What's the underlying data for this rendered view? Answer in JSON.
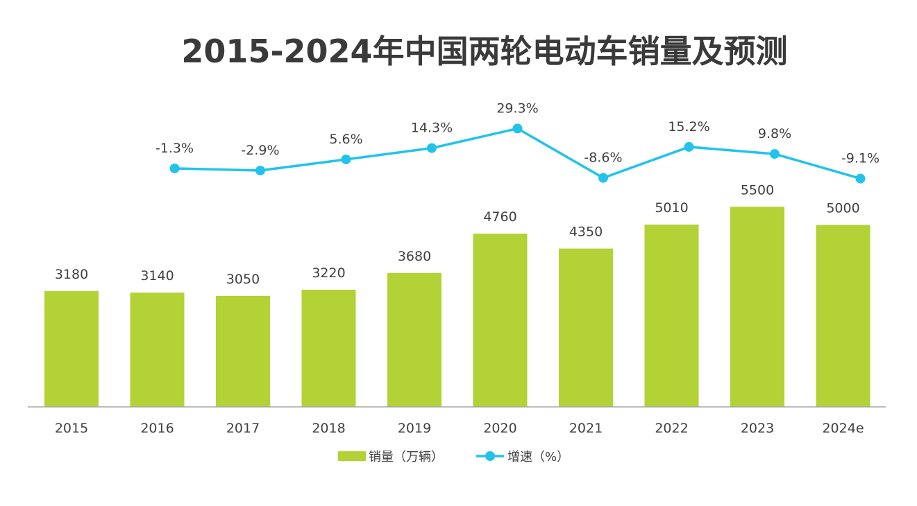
{
  "chart_data": {
    "type": "bar",
    "title": "2015-2024年中国两轮电动车销量及预测",
    "categories": [
      "2015",
      "2016",
      "2017",
      "2018",
      "2019",
      "2020",
      "2021",
      "2022",
      "2023",
      "2024e"
    ],
    "series": [
      {
        "name": "销量（万辆）",
        "type": "bar",
        "values": [
          3180,
          3140,
          3050,
          3220,
          3680,
          4760,
          4350,
          5010,
          5500,
          5000
        ],
        "labels": [
          "3180",
          "3140",
          "3050",
          "3220",
          "3680",
          "4760",
          "4350",
          "5010",
          "5500",
          "5000"
        ]
      },
      {
        "name": "增速（%）",
        "type": "line",
        "values": [
          null,
          -1.3,
          -2.9,
          5.6,
          14.3,
          29.3,
          -8.6,
          15.2,
          9.8,
          -9.1
        ],
        "labels": [
          "",
          "-1.3%",
          "-2.9%",
          "5.6%",
          "14.3%",
          "29.3%",
          "-8.6%",
          "15.2%",
          "9.8%",
          "-9.1%"
        ]
      }
    ],
    "legend_position": "bottom-center",
    "grid": false
  },
  "colors": {
    "bar": "#b2d235",
    "line": "#22c3ea",
    "axis": "#a6a6a6",
    "text": "#404040",
    "title": "#3a3a3a"
  }
}
